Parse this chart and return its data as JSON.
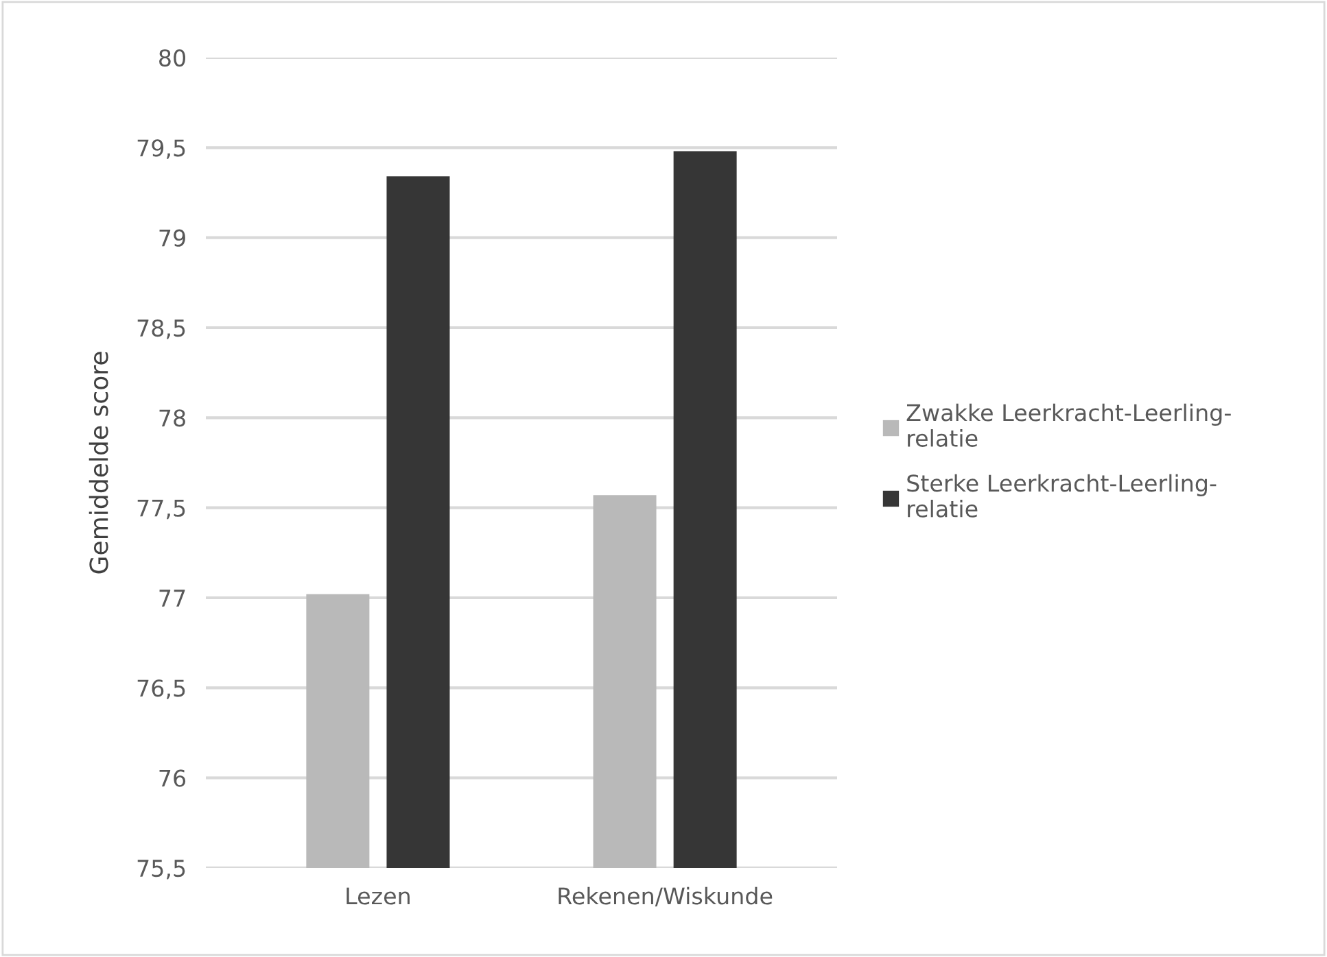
{
  "chart_data": {
    "type": "bar",
    "ylabel": "Gemiddelde score",
    "categories": [
      "Lezen",
      "Rekenen/Wiskunde"
    ],
    "series": [
      {
        "name": "Zwakke Leerkracht-Leerling-relatie",
        "color": "#b9b9b9",
        "values": [
          77.02,
          77.57
        ]
      },
      {
        "name": "Sterke Leerkracht-Leerling-relatie",
        "color": "#363636",
        "values": [
          79.34,
          79.48
        ]
      }
    ],
    "ylim": [
      75.5,
      80
    ],
    "yticks": [
      {
        "value": 75.5,
        "label": "75,5"
      },
      76,
      {
        "value": 76.5,
        "label": "76,5"
      },
      77,
      {
        "value": 77.5,
        "label": "77,5"
      },
      78,
      {
        "value": 78.5,
        "label": "78,5"
      },
      79,
      {
        "value": 79.5,
        "label": "79,5"
      },
      80
    ],
    "grid": "y",
    "legend": "right"
  }
}
